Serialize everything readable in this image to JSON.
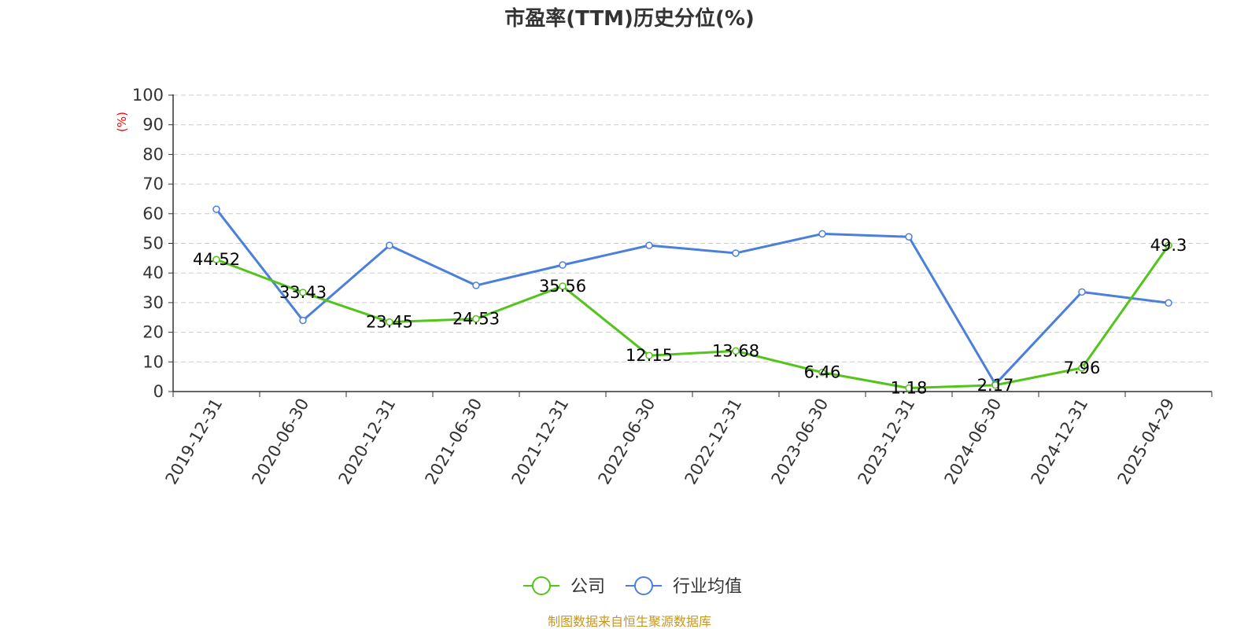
{
  "chart_data": {
    "type": "line",
    "title": "市盈率(TTM)历史分位(%)",
    "ylabel": "(%)",
    "xlabel": "",
    "ylim": [
      0,
      100
    ],
    "yticks": [
      "0",
      "10",
      "20",
      "30",
      "40",
      "50",
      "60",
      "70",
      "80",
      "90",
      "100"
    ],
    "categories": [
      "2019-12-31",
      "2020-06-30",
      "2020-12-31",
      "2021-06-30",
      "2021-12-31",
      "2022-06-30",
      "2022-12-31",
      "2023-06-30",
      "2023-12-31",
      "2024-06-30",
      "2024-12-31",
      "2025-04-29"
    ],
    "series": [
      {
        "name": "公司",
        "color": "#52c41a",
        "values": [
          44.52,
          33.43,
          23.45,
          24.53,
          35.56,
          12.15,
          13.68,
          6.46,
          1.18,
          2.17,
          7.96,
          49.3
        ],
        "labels": [
          "44.52",
          "33.43",
          "23.45",
          "24.53",
          "35.56",
          "12.15",
          "13.68",
          "6.46",
          "1.18",
          "2.17",
          "7.96",
          "49.3"
        ]
      },
      {
        "name": "行业均值",
        "color": "#4a7fdc",
        "values": [
          61.5,
          24,
          49.3,
          35.8,
          42.7,
          49.3,
          46.7,
          53.2,
          52.2,
          2.5,
          33.6,
          29.9
        ]
      }
    ],
    "grid": true,
    "legend_position": "bottom-center"
  },
  "source_text": "制图数据来自恒生聚源数据库"
}
